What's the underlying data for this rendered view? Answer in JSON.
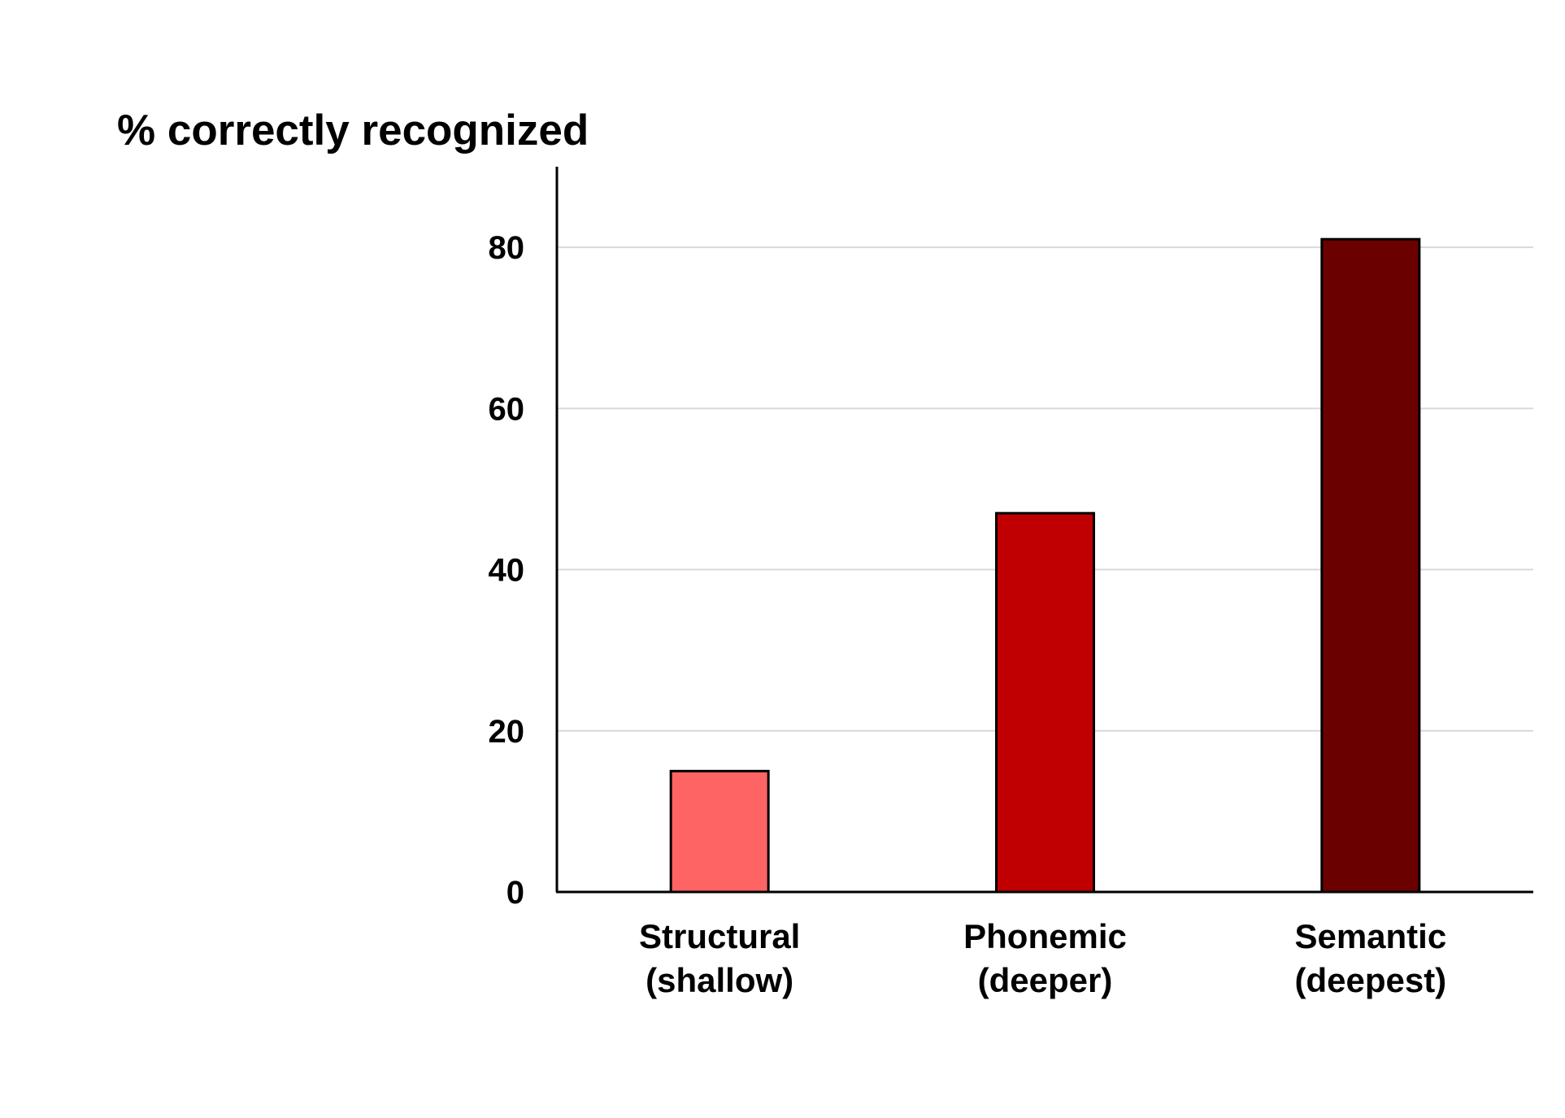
{
  "chart_data": {
    "type": "bar",
    "ylabel": "% correctly recognized",
    "xlabel": "",
    "categories": [
      [
        "Structural",
        "(shallow)"
      ],
      [
        "Phonemic",
        "(deeper)"
      ],
      [
        "Semantic",
        "(deepest)"
      ]
    ],
    "values": [
      15,
      47,
      81
    ],
    "colors": [
      "#ff6464",
      "#c00000",
      "#6b0000"
    ],
    "ylim": [
      0,
      90
    ],
    "yticks": [
      0,
      20,
      40,
      60,
      80
    ],
    "grid": true
  }
}
